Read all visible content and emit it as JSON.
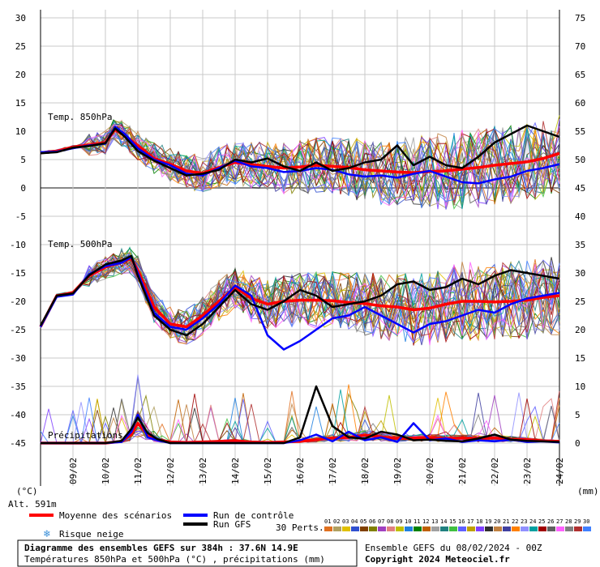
{
  "chart_data": {
    "type": "line",
    "title": "Diagramme des ensembles GEFS sur 384h : 37.6N 14.9E",
    "subtitle": "Températures 850hPa et 500hPa (°C) , précipitations (mm)",
    "run_info": "Ensemble GEFS du 08/02/2024 - 00Z",
    "copyright": "Copyright 2024 Meteociel.fr",
    "altitude": "Alt. 591m",
    "left_unit": "(°C)",
    "right_unit": "(mm)",
    "left_axis": {
      "ticks": [
        "30",
        "25",
        "20",
        "15",
        "10",
        "5",
        "0",
        "-5",
        "-10",
        "-15",
        "-20",
        "-25",
        "-30",
        "-35",
        "-40",
        "-45"
      ],
      "ylim": [
        -45,
        30
      ]
    },
    "right_axis": {
      "ticks": [
        "75",
        "70",
        "65",
        "60",
        "55",
        "50",
        "45",
        "40",
        "35",
        "30",
        "25",
        "20",
        "15",
        "10",
        "5",
        "0"
      ],
      "ylim": [
        0,
        75
      ]
    },
    "x_ticks": [
      "09/02",
      "10/02",
      "11/02",
      "12/02",
      "13/02",
      "14/02",
      "15/02",
      "16/02",
      "17/02",
      "18/02",
      "19/02",
      "20/02",
      "21/02",
      "22/02",
      "23/02",
      "24/02"
    ],
    "x_range_days": [
      0,
      16
    ],
    "section_labels": [
      "Temp. 850hPa",
      "Temp. 500hPa",
      "Précipitations"
    ],
    "legend": {
      "mean": "Moyenne des scénarios",
      "control": "Run de contrôle",
      "gfs": "Run GFS",
      "snow": "Risque neige",
      "perts_label": "30 Perts."
    },
    "pert_colors": [
      "#e07020",
      "#b0a060",
      "#e0c000",
      "#3050d0",
      "#804000",
      "#808000",
      "#a040c0",
      "#e08080",
      "#c0c000",
      "#2080e0",
      "#008000",
      "#c06000",
      "#a0a0a0",
      "#208080",
      "#40c040",
      "#6060ff",
      "#c0a000",
      "#8040ff",
      "#303030",
      "#c08040",
      "#4040a0",
      "#ff8000",
      "#9090ff",
      "#00a0a0",
      "#a00000",
      "#606060",
      "#ff60ff",
      "#808080",
      "#b03030",
      "#4080ff"
    ],
    "pert_numbers": [
      "01",
      "02",
      "03",
      "04",
      "05",
      "06",
      "07",
      "08",
      "09",
      "10",
      "11",
      "12",
      "13",
      "14",
      "15",
      "16",
      "17",
      "18",
      "19",
      "20",
      "21",
      "22",
      "23",
      "24",
      "25",
      "26",
      "27",
      "28",
      "29",
      "30"
    ],
    "snow_risk_markers": [
      19.2,
      19.4,
      19.6,
      19.8,
      20.2,
      20.4,
      20.6,
      20.8,
      21.8,
      22.0,
      22.2
    ],
    "series": [
      {
        "name": "Moyenne des scénarios",
        "panel": "t850",
        "color": "#ff0000",
        "x": [
          0,
          0.5,
          1,
          1.5,
          2,
          2.3,
          2.6,
          3,
          3.5,
          4,
          4.5,
          5,
          5.5,
          6,
          6.5,
          7,
          7.5,
          8,
          8.5,
          9,
          9.5,
          10,
          10.5,
          11,
          11.5,
          12,
          12.5,
          13,
          13.5,
          14,
          14.5,
          15,
          15.5,
          16
        ],
        "values": [
          6.2,
          6.5,
          7.2,
          7.6,
          8.0,
          10.3,
          9.2,
          7.5,
          5.2,
          4.2,
          3.0,
          2.6,
          3.6,
          4.5,
          4.1,
          3.8,
          3.5,
          3.7,
          4.0,
          3.8,
          3.6,
          3.2,
          3.0,
          2.8,
          2.7,
          2.9,
          3.0,
          3.3,
          3.6,
          4.0,
          4.3,
          4.6,
          5.2,
          6.1
        ]
      },
      {
        "name": "Run de contrôle",
        "panel": "t850",
        "color": "#0000ff",
        "x": [
          0,
          0.5,
          1,
          1.5,
          2,
          2.3,
          2.6,
          3,
          3.5,
          4,
          4.5,
          5,
          5.5,
          6,
          6.5,
          7,
          7.5,
          8,
          8.5,
          9,
          9.5,
          10,
          10.5,
          11,
          11.5,
          12,
          12.5,
          13,
          13.5,
          14,
          14.5,
          15,
          15.5,
          16
        ],
        "values": [
          6.3,
          6.4,
          7.0,
          7.5,
          7.8,
          10.8,
          9.5,
          7.0,
          5.0,
          4.0,
          2.5,
          2.2,
          3.5,
          4.8,
          3.8,
          3.5,
          2.8,
          3.0,
          3.5,
          3.2,
          2.4,
          2.0,
          2.2,
          1.8,
          2.5,
          3.0,
          2.0,
          1.0,
          0.8,
          1.5,
          2.0,
          3.0,
          3.5,
          4.2
        ]
      },
      {
        "name": "Run GFS",
        "panel": "t850",
        "color": "#000000",
        "x": [
          0,
          0.5,
          1,
          1.5,
          2,
          2.3,
          2.6,
          3,
          3.5,
          4,
          4.5,
          5,
          5.5,
          6,
          6.5,
          7,
          7.5,
          8,
          8.5,
          9,
          9.5,
          10,
          10.5,
          11,
          11.5,
          12,
          12.5,
          13,
          13.5,
          14,
          14.5,
          15,
          15.5,
          16
        ],
        "values": [
          6.1,
          6.3,
          7.1,
          7.4,
          7.9,
          10.5,
          9.0,
          6.5,
          4.8,
          3.5,
          2.2,
          2.5,
          3.2,
          5.0,
          4.5,
          5.2,
          3.8,
          3.0,
          4.5,
          3.0,
          3.5,
          4.5,
          5.0,
          7.5,
          4.0,
          5.5,
          4.0,
          3.5,
          5.5,
          8.0,
          9.5,
          11.0,
          10.0,
          9.0
        ]
      },
      {
        "name": "Moyenne des scénarios",
        "panel": "t500",
        "color": "#ff0000",
        "x": [
          0,
          0.5,
          1,
          1.5,
          2,
          2.5,
          2.8,
          3,
          3.5,
          4,
          4.5,
          5,
          5.5,
          6,
          6.5,
          7,
          7.5,
          8,
          8.5,
          9,
          9.5,
          10,
          10.5,
          11,
          11.5,
          12,
          12.5,
          13,
          13.5,
          14,
          14.5,
          15,
          15.5,
          16
        ],
        "values": [
          -24.5,
          -19.0,
          -18.5,
          -15.5,
          -14.0,
          -13.0,
          -12.5,
          -14.5,
          -21.0,
          -24.0,
          -24.5,
          -22.5,
          -20.0,
          -17.5,
          -19.5,
          -20.5,
          -20.0,
          -19.8,
          -19.8,
          -19.9,
          -20.2,
          -20.4,
          -20.8,
          -21.0,
          -21.5,
          -21.2,
          -20.5,
          -20.0,
          -20.0,
          -20.1,
          -20.0,
          -19.8,
          -19.3,
          -19.0
        ]
      },
      {
        "name": "Run de contrôle",
        "panel": "t500",
        "color": "#0000ff",
        "x": [
          0,
          0.5,
          1,
          1.5,
          2,
          2.5,
          2.8,
          3,
          3.5,
          4,
          4.5,
          5,
          5.5,
          6,
          6.5,
          7,
          7.5,
          8,
          8.5,
          9,
          9.5,
          10,
          10.5,
          11,
          11.5,
          12,
          12.5,
          13,
          13.5,
          14,
          14.5,
          15,
          15.5,
          16
        ],
        "values": [
          -24.5,
          -19.2,
          -18.8,
          -15.2,
          -13.8,
          -13.2,
          -12.2,
          -15.0,
          -22.0,
          -24.5,
          -25.0,
          -23.0,
          -20.5,
          -17.2,
          -19.0,
          -26.0,
          -28.5,
          -27.0,
          -25.0,
          -23.0,
          -22.5,
          -21.0,
          -22.5,
          -24.0,
          -25.5,
          -24.0,
          -23.5,
          -22.5,
          -21.5,
          -22.0,
          -20.5,
          -19.5,
          -19.0,
          -18.5
        ]
      },
      {
        "name": "Run GFS",
        "panel": "t500",
        "color": "#000000",
        "x": [
          0,
          0.5,
          1,
          1.5,
          2,
          2.5,
          2.8,
          3,
          3.5,
          4,
          4.5,
          5,
          5.5,
          6,
          6.5,
          7,
          7.5,
          8,
          8.5,
          9,
          9.5,
          10,
          10.5,
          11,
          11.5,
          12,
          12.5,
          13,
          13.5,
          14,
          14.5,
          15,
          15.5,
          16
        ],
        "values": [
          -24.3,
          -19.0,
          -18.6,
          -15.4,
          -13.5,
          -12.8,
          -12.0,
          -15.5,
          -22.5,
          -25.0,
          -26.0,
          -24.0,
          -21.0,
          -18.0,
          -20.5,
          -21.5,
          -20.0,
          -18.0,
          -19.0,
          -21.0,
          -20.5,
          -20.0,
          -19.0,
          -17.0,
          -16.5,
          -18.0,
          -17.5,
          -16.0,
          -17.0,
          -15.5,
          -14.5,
          -15.0,
          -15.5,
          -16.0
        ]
      },
      {
        "name": "Moyenne des scénarios",
        "panel": "precip",
        "color": "#ff0000",
        "x": [
          0,
          1,
          2,
          2.5,
          2.8,
          3,
          3.3,
          3.6,
          4,
          4.5,
          5,
          5.5,
          6,
          6.5,
          7,
          7.5,
          8,
          8.5,
          9,
          9.5,
          10,
          10.5,
          11,
          11.5,
          12,
          12.5,
          13,
          13.5,
          14,
          14.5,
          15,
          15.5,
          16
        ],
        "values": [
          0,
          0,
          0,
          0.3,
          1.5,
          3.5,
          1.5,
          0.6,
          0.2,
          0.1,
          0.2,
          0.3,
          0.4,
          0.2,
          0.1,
          0.2,
          0.3,
          0.6,
          0.9,
          1.0,
          1.4,
          1.1,
          0.8,
          0.9,
          1.0,
          0.8,
          0.9,
          0.8,
          0.9,
          0.7,
          0.6,
          0.4,
          0.3
        ]
      },
      {
        "name": "Run de contrôle",
        "panel": "precip",
        "color": "#0000ff",
        "x": [
          0,
          1,
          2,
          2.5,
          2.8,
          3,
          3.3,
          3.6,
          4,
          4.5,
          5,
          5.5,
          6,
          6.5,
          7,
          7.5,
          8,
          8.5,
          9,
          9.5,
          10,
          10.5,
          11,
          11.5,
          12,
          12.5,
          13,
          13.5,
          14,
          14.5,
          15,
          15.5,
          16
        ],
        "values": [
          0,
          0,
          0,
          0.2,
          2.0,
          5.0,
          1.0,
          0.5,
          0,
          0,
          0,
          0,
          0,
          0,
          0,
          0,
          0.5,
          1.5,
          0.3,
          2.0,
          0.5,
          1.0,
          0.2,
          3.5,
          0.5,
          0.8,
          0.2,
          0.5,
          0.3,
          0.6,
          0.2,
          0.3,
          0.1
        ]
      },
      {
        "name": "Run GFS",
        "panel": "precip",
        "color": "#000000",
        "x": [
          0,
          1,
          2,
          2.5,
          2.8,
          3,
          3.3,
          3.6,
          4,
          4.5,
          5,
          5.5,
          6,
          6.5,
          7,
          7.5,
          8,
          8.5,
          9,
          9.5,
          10,
          10.5,
          11,
          11.5,
          12,
          12.5,
          13,
          13.5,
          14,
          14.5,
          15,
          15.5,
          16
        ],
        "values": [
          0,
          0,
          0,
          0.4,
          2.5,
          4.5,
          1.8,
          0.7,
          0,
          0,
          0,
          0,
          0,
          0,
          0,
          0,
          1.0,
          10.0,
          3.0,
          1.0,
          0.8,
          2.0,
          1.5,
          0.5,
          0.6,
          0.4,
          0.3,
          0.8,
          1.5,
          0.6,
          0.4,
          0.3,
          0.2
        ]
      }
    ]
  }
}
